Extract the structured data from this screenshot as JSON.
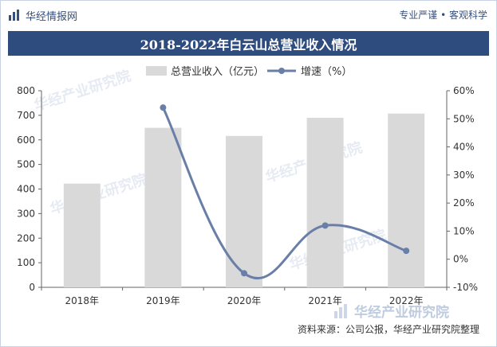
{
  "header": {
    "brand": "华经情报网",
    "tagline": "专业严谨 • 客观科学"
  },
  "watermark": {
    "text": "华经产业研究院"
  },
  "source": "资料来源：公司公报，华经产业研究院整理",
  "colors": {
    "bar": "#d9d9d9",
    "line": "#6a7fa8",
    "title_bg": "#2e4c7d",
    "accent": "#35507e"
  },
  "chart_data": {
    "type": "bar",
    "title": "2018-2022年白云山总营业收入情况",
    "categories": [
      "2018年",
      "2019年",
      "2020年",
      "2021年",
      "2022年"
    ],
    "series": [
      {
        "name": "总营业收入（亿元）",
        "type": "bar",
        "axis": "left",
        "values": [
          422,
          649,
          616,
          690,
          707
        ]
      },
      {
        "name": "增速（%）",
        "type": "line",
        "axis": "right",
        "values": [
          null,
          54,
          -5,
          12,
          3
        ]
      }
    ],
    "y_left": {
      "min": 0,
      "max": 800,
      "ticks": [
        "0",
        "100",
        "200",
        "300",
        "400",
        "500",
        "600",
        "700",
        "800"
      ]
    },
    "y_right": {
      "min": -10,
      "max": 60,
      "ticks": [
        "-10%",
        "0%",
        "10%",
        "20%",
        "30%",
        "40%",
        "50%",
        "60%"
      ]
    },
    "legend": "top-center",
    "grid": false
  }
}
